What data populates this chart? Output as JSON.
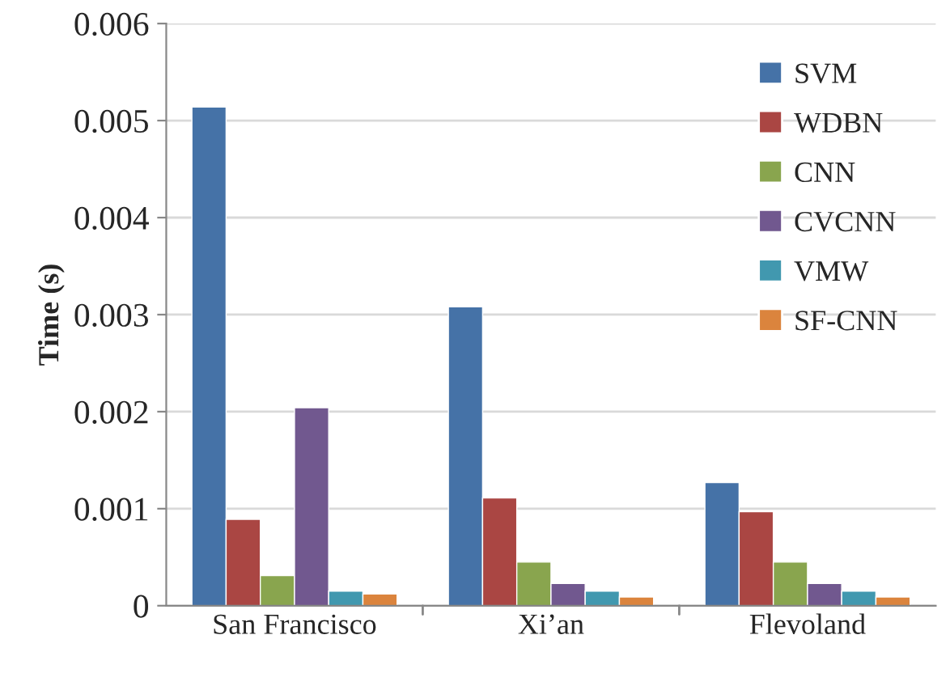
{
  "chart_data": {
    "type": "bar",
    "ylabel": "Time (s)",
    "categories": [
      "San Francisco",
      "Xi’an",
      "Flevoland"
    ],
    "series": [
      {
        "name": "SVM",
        "color": "#4572a7",
        "values": [
          0.00514,
          0.00308,
          0.00127
        ]
      },
      {
        "name": "WDBN",
        "color": "#aa4643",
        "values": [
          0.00089,
          0.00111,
          0.00097
        ]
      },
      {
        "name": "CNN",
        "color": "#89a54e",
        "values": [
          0.00031,
          0.00045,
          0.00045
        ]
      },
      {
        "name": "CVCNN",
        "color": "#71588f",
        "values": [
          0.00204,
          0.00023,
          0.00023
        ]
      },
      {
        "name": "VMW",
        "color": "#4198af",
        "values": [
          0.00015,
          0.00015,
          0.00015
        ]
      },
      {
        "name": "SF-CNN",
        "color": "#db843d",
        "values": [
          0.00012,
          9e-05,
          9e-05
        ]
      }
    ],
    "ylim": [
      0,
      0.006
    ],
    "yticks": [
      0,
      0.001,
      0.002,
      0.003,
      0.004,
      0.005,
      0.006
    ],
    "grid": "y",
    "legend": "top right"
  }
}
